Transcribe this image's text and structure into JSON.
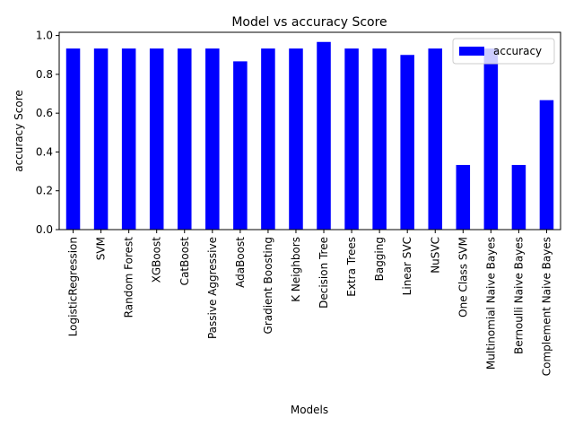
{
  "chart_data": {
    "type": "bar",
    "title": "Model vs accuracy Score",
    "xlabel": "Models",
    "ylabel": "accuracy Score",
    "ylim": [
      0,
      1.0167
    ],
    "yticks": [
      "0.0",
      "0.2",
      "0.4",
      "0.6",
      "0.8",
      "1.0"
    ],
    "grid": false,
    "legend_position": "top-right",
    "bar_color": "#0000ff",
    "categories": [
      "LogisticRegression",
      "SVM",
      "Random Forest",
      "XGBoost",
      "CatBoost",
      "Passive Aggressive",
      "AdaBoost",
      "Gradient Boosting",
      "K Neighbors",
      "Decision Tree",
      "Extra Trees",
      "Bagging",
      "Linear SVC",
      "NuSVC",
      "One Class SVM",
      "Multinomial Naive Bayes",
      "Bernoulli Naive Bayes",
      "Complement Naive Bayes"
    ],
    "series": [
      {
        "name": "accuracy",
        "values": [
          0.933,
          0.933,
          0.933,
          0.933,
          0.933,
          0.933,
          0.867,
          0.933,
          0.933,
          0.967,
          0.933,
          0.933,
          0.9,
          0.933,
          0.333,
          0.933,
          0.333,
          0.667
        ]
      }
    ]
  }
}
